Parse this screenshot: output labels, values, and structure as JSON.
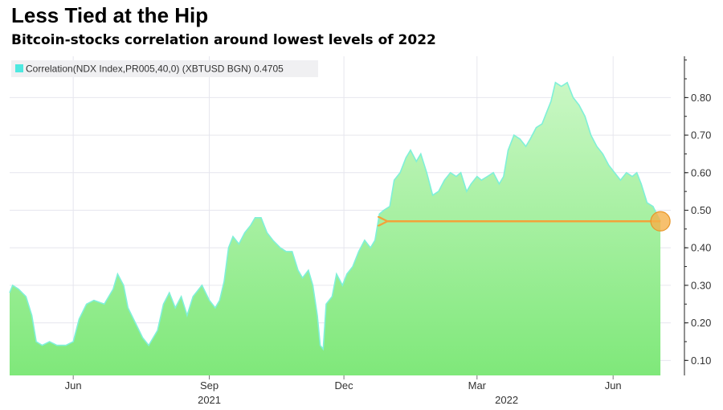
{
  "header": {
    "title": "Less Tied at the Hip",
    "subtitle": "Bitcoin-stocks correlation around lowest levels of 2022"
  },
  "legend": {
    "label": "Correlation(NDX Index,PR005,40,0) (XBTUSD BGN) 0.4705",
    "swatch_color": "#4ee8e0"
  },
  "colors": {
    "line": "#7ff0d8",
    "fill_top": "#c9f7c4",
    "fill_bottom": "#7fe87a",
    "arrow": "#f2a33a",
    "marker": "#f5b04a",
    "grid": "#e6e6ee"
  },
  "chart_data": {
    "type": "area",
    "title": "Less Tied at the Hip",
    "subtitle": "Bitcoin-stocks correlation around lowest levels of 2022",
    "xlabel": "",
    "ylabel": "",
    "xlim": [
      "2021-04-19",
      "2022-07-10"
    ],
    "ylim": [
      0.06,
      0.91
    ],
    "yticks": [
      0.1,
      0.2,
      0.3,
      0.4,
      0.5,
      0.6,
      0.7,
      0.8
    ],
    "ytick_labels": [
      "0.10",
      "0.20",
      "0.30",
      "0.40",
      "0.50",
      "0.60",
      "0.70",
      "0.80"
    ],
    "y_axis_side": "right",
    "xticks": [
      {
        "date": "2021-06-01",
        "label": "Jun"
      },
      {
        "date": "2021-09-01",
        "label": "Sep"
      },
      {
        "date": "2021-12-01",
        "label": "Dec"
      },
      {
        "date": "2022-03-01",
        "label": "Mar"
      },
      {
        "date": "2022-06-01",
        "label": "Jun"
      }
    ],
    "year_labels": [
      {
        "date": "2021-09-01",
        "label": "2021"
      },
      {
        "date": "2022-03-21",
        "label": "2022"
      }
    ],
    "gridlines": true,
    "legend_position": "top-left",
    "series": [
      {
        "name": "Correlation(NDX Index,PR005,40,0) (XBTUSD BGN)",
        "last_value": 0.4705,
        "points": [
          [
            "2021-04-19",
            0.28
          ],
          [
            "2021-04-21",
            0.3
          ],
          [
            "2021-04-25",
            0.29
          ],
          [
            "2021-04-30",
            0.27
          ],
          [
            "2021-05-04",
            0.22
          ],
          [
            "2021-05-07",
            0.15
          ],
          [
            "2021-05-11",
            0.14
          ],
          [
            "2021-05-16",
            0.15
          ],
          [
            "2021-05-21",
            0.14
          ],
          [
            "2021-05-27",
            0.14
          ],
          [
            "2021-06-01",
            0.15
          ],
          [
            "2021-06-05",
            0.21
          ],
          [
            "2021-06-10",
            0.25
          ],
          [
            "2021-06-15",
            0.26
          ],
          [
            "2021-06-22",
            0.25
          ],
          [
            "2021-06-28",
            0.29
          ],
          [
            "2021-07-01",
            0.33
          ],
          [
            "2021-07-05",
            0.3
          ],
          [
            "2021-07-08",
            0.24
          ],
          [
            "2021-07-13",
            0.2
          ],
          [
            "2021-07-18",
            0.16
          ],
          [
            "2021-07-22",
            0.14
          ],
          [
            "2021-07-28",
            0.18
          ],
          [
            "2021-08-01",
            0.25
          ],
          [
            "2021-08-05",
            0.28
          ],
          [
            "2021-08-09",
            0.24
          ],
          [
            "2021-08-13",
            0.27
          ],
          [
            "2021-08-17",
            0.22
          ],
          [
            "2021-08-21",
            0.27
          ],
          [
            "2021-08-27",
            0.3
          ],
          [
            "2021-09-01",
            0.26
          ],
          [
            "2021-09-05",
            0.24
          ],
          [
            "2021-09-08",
            0.26
          ],
          [
            "2021-09-11",
            0.31
          ],
          [
            "2021-09-14",
            0.4
          ],
          [
            "2021-09-17",
            0.43
          ],
          [
            "2021-09-21",
            0.41
          ],
          [
            "2021-09-25",
            0.44
          ],
          [
            "2021-09-29",
            0.46
          ],
          [
            "2021-10-02",
            0.48
          ],
          [
            "2021-10-06",
            0.48
          ],
          [
            "2021-10-10",
            0.44
          ],
          [
            "2021-10-14",
            0.42
          ],
          [
            "2021-10-19",
            0.4
          ],
          [
            "2021-10-23",
            0.39
          ],
          [
            "2021-10-27",
            0.39
          ],
          [
            "2021-10-31",
            0.34
          ],
          [
            "2021-11-03",
            0.32
          ],
          [
            "2021-11-07",
            0.34
          ],
          [
            "2021-11-10",
            0.3
          ],
          [
            "2021-11-13",
            0.22
          ],
          [
            "2021-11-15",
            0.14
          ],
          [
            "2021-11-17",
            0.13
          ],
          [
            "2021-11-19",
            0.25
          ],
          [
            "2021-11-23",
            0.27
          ],
          [
            "2021-11-26",
            0.33
          ],
          [
            "2021-11-30",
            0.3
          ],
          [
            "2021-12-03",
            0.33
          ],
          [
            "2021-12-07",
            0.35
          ],
          [
            "2021-12-11",
            0.39
          ],
          [
            "2021-12-15",
            0.42
          ],
          [
            "2021-12-19",
            0.4
          ],
          [
            "2021-12-22",
            0.42
          ],
          [
            "2021-12-25",
            0.49
          ],
          [
            "2021-12-28",
            0.5
          ],
          [
            "2022-01-01",
            0.51
          ],
          [
            "2022-01-04",
            0.58
          ],
          [
            "2022-01-08",
            0.6
          ],
          [
            "2022-01-12",
            0.64
          ],
          [
            "2022-01-15",
            0.66
          ],
          [
            "2022-01-19",
            0.63
          ],
          [
            "2022-01-22",
            0.65
          ],
          [
            "2022-01-26",
            0.6
          ],
          [
            "2022-01-30",
            0.54
          ],
          [
            "2022-02-03",
            0.55
          ],
          [
            "2022-02-07",
            0.58
          ],
          [
            "2022-02-11",
            0.6
          ],
          [
            "2022-02-15",
            0.59
          ],
          [
            "2022-02-18",
            0.6
          ],
          [
            "2022-02-22",
            0.55
          ],
          [
            "2022-02-25",
            0.57
          ],
          [
            "2022-03-01",
            0.59
          ],
          [
            "2022-03-04",
            0.58
          ],
          [
            "2022-03-08",
            0.59
          ],
          [
            "2022-03-12",
            0.6
          ],
          [
            "2022-03-16",
            0.57
          ],
          [
            "2022-03-19",
            0.59
          ],
          [
            "2022-03-22",
            0.66
          ],
          [
            "2022-03-26",
            0.7
          ],
          [
            "2022-03-30",
            0.69
          ],
          [
            "2022-04-03",
            0.67
          ],
          [
            "2022-04-06",
            0.69
          ],
          [
            "2022-04-10",
            0.72
          ],
          [
            "2022-04-14",
            0.73
          ],
          [
            "2022-04-17",
            0.76
          ],
          [
            "2022-04-20",
            0.79
          ],
          [
            "2022-04-23",
            0.84
          ],
          [
            "2022-04-27",
            0.83
          ],
          [
            "2022-05-01",
            0.84
          ],
          [
            "2022-05-05",
            0.8
          ],
          [
            "2022-05-09",
            0.78
          ],
          [
            "2022-05-13",
            0.75
          ],
          [
            "2022-05-17",
            0.7
          ],
          [
            "2022-05-21",
            0.67
          ],
          [
            "2022-05-25",
            0.65
          ],
          [
            "2022-05-29",
            0.62
          ],
          [
            "2022-06-02",
            0.6
          ],
          [
            "2022-06-06",
            0.58
          ],
          [
            "2022-06-10",
            0.6
          ],
          [
            "2022-06-14",
            0.59
          ],
          [
            "2022-06-17",
            0.6
          ],
          [
            "2022-06-20",
            0.57
          ],
          [
            "2022-06-24",
            0.52
          ],
          [
            "2022-06-28",
            0.51
          ],
          [
            "2022-07-03",
            0.47
          ]
        ]
      }
    ],
    "annotations": [
      {
        "type": "arrow",
        "from": [
          "2022-07-03",
          0.4705
        ],
        "to": [
          "2021-12-28",
          0.4705
        ]
      },
      {
        "type": "circle",
        "at": [
          "2022-07-03",
          0.4705
        ]
      }
    ]
  }
}
